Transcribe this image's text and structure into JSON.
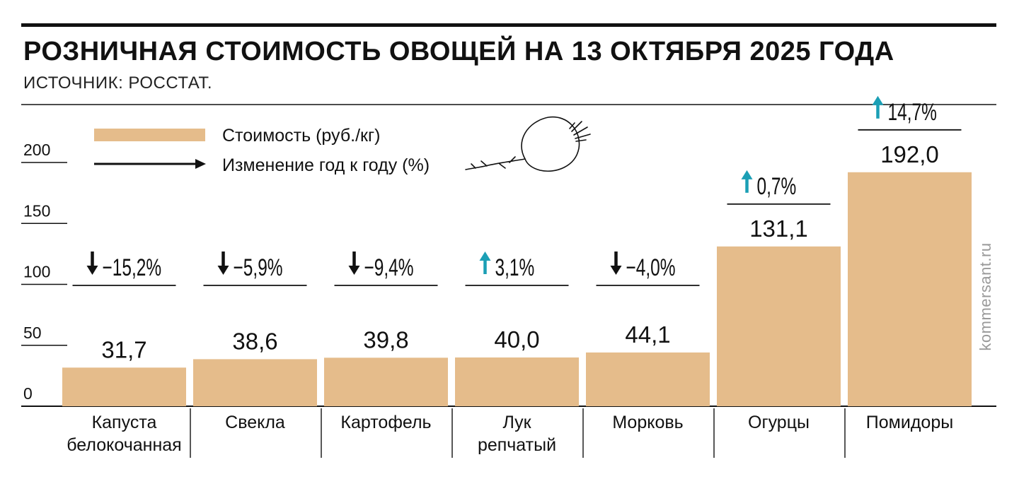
{
  "title": "РОЗНИЧНАЯ СТОИМОСТЬ ОВОЩЕЙ НА 13 ОКТЯБРЯ 2025 ГОДА",
  "source": "ИСТОЧНИК: РОССТАТ.",
  "watermark": "kommersant.ru",
  "legend": {
    "cost_label": "Стоимость (руб./кг)",
    "change_label": "Изменение год к году (%)"
  },
  "colors": {
    "bar": "#e5bc8b",
    "up_arrow": "#1b9fb5",
    "down_arrow": "#111111",
    "text": "#111111"
  },
  "illustration": "beet-icon",
  "chart_data": {
    "type": "bar",
    "categories": [
      "Капуста белокочанная",
      "Свекла",
      "Картофель",
      "Лук репчатый",
      "Морковь",
      "Огурцы",
      "Помидоры"
    ],
    "category_lines": [
      [
        "Капуста",
        "белокочанная"
      ],
      [
        "Свекла"
      ],
      [
        "Картофель"
      ],
      [
        "Лук",
        "репчатый"
      ],
      [
        "Морковь"
      ],
      [
        "Огурцы"
      ],
      [
        "Помидоры"
      ]
    ],
    "values": [
      31.7,
      38.6,
      39.8,
      40.0,
      44.1,
      131.1,
      192.0
    ],
    "value_labels": [
      "31,7",
      "38,6",
      "39,8",
      "40,0",
      "44,1",
      "131,1",
      "192,0"
    ],
    "changes": [
      -15.2,
      -5.9,
      -9.4,
      3.1,
      -4.0,
      0.7,
      14.7
    ],
    "change_labels": [
      "−15,2%",
      "−5,9%",
      "−9,4%",
      "3,1%",
      "−4,0%",
      "0,7%",
      "14,7%"
    ],
    "yticks": [
      0,
      50,
      100,
      150,
      200
    ],
    "ytick_labels": [
      "0",
      "50",
      "100",
      "150",
      "200"
    ],
    "ylim": [
      0,
      200
    ],
    "grid": false
  }
}
